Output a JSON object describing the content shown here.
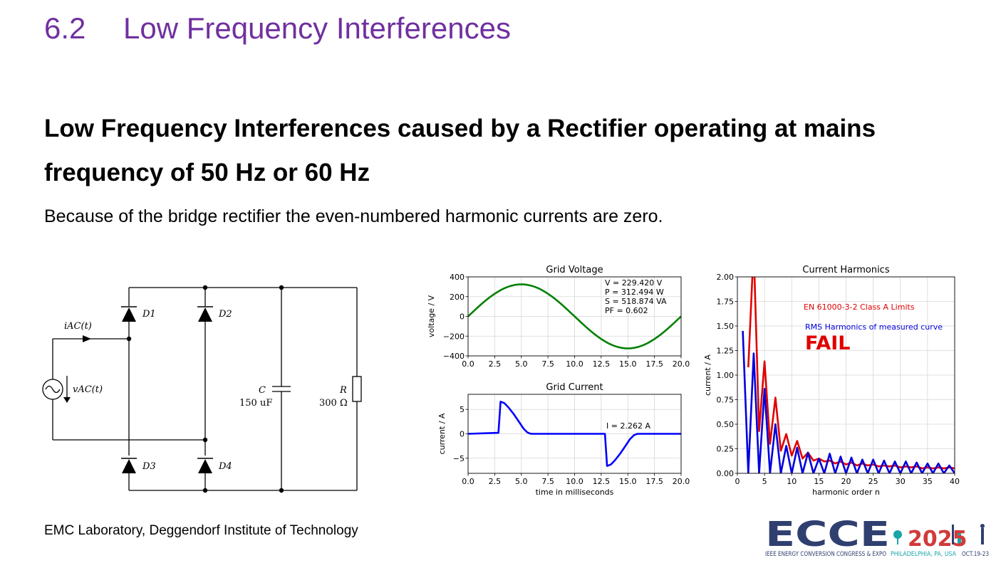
{
  "slide": {
    "section_number": "6.2",
    "section_title": "Low Frequency Interferences",
    "headline": "Low Frequency Interferences caused by a Rectifier operating at mains frequency of 50 Hz or 60 Hz",
    "subtext": "Because of the bridge rectifier the even-numbered harmonic currents are zero.",
    "footer": "EMC Laboratory, Deggendorf Institute of Technology"
  },
  "circuit": {
    "d1": "D1",
    "d2": "D2",
    "d3": "D3",
    "d4": "D4",
    "iac": "iAC(t)",
    "vac": "vAC(t)",
    "c_label": "C",
    "c_value": "150 uF",
    "r_label": "R",
    "r_value": "300 Ω"
  },
  "logo": {
    "name": "ECCE",
    "year": "2025",
    "tagline": "IEEE ENERGY CONVERSION CONGRESS & EXPO",
    "location": "PHILADELPHIA, PA, USA",
    "dates": "OCT.19-23",
    "colors": {
      "navy": "#2f3f6f",
      "red": "#d23a3a",
      "teal": "#1aa6a6",
      "gold": "#e3a13a"
    }
  },
  "chart_data": [
    {
      "type": "line",
      "title": "Grid Voltage",
      "xlabel": "",
      "ylabel": "voltage / V",
      "xlim": [
        0,
        20
      ],
      "ylim": [
        -400,
        400
      ],
      "xticks": [
        "0.0",
        "2.5",
        "5.0",
        "7.5",
        "10.0",
        "12.5",
        "15.0",
        "17.5",
        "20.0"
      ],
      "yticks": [
        "400",
        "200",
        "0",
        "−200",
        "−400"
      ],
      "ytick_values": [
        400,
        200,
        0,
        -200,
        -400
      ],
      "grid": true,
      "annotation": [
        "V = 229.420 V",
        "P = 312.494 W",
        "S = 518.874 VA",
        "PF = 0.602"
      ],
      "series": [
        {
          "color": "#008000",
          "amplitude": 324,
          "frequency_hz": 50
        }
      ]
    },
    {
      "type": "line",
      "title": "Grid Current",
      "xlabel": "time in milliseconds",
      "ylabel": "current / A",
      "xlim": [
        0,
        20
      ],
      "ylim": [
        -8.1,
        8.1
      ],
      "xticks": [
        "0.0",
        "2.5",
        "5.0",
        "7.5",
        "10.0",
        "12.5",
        "15.0",
        "17.5",
        "20.0"
      ],
      "yticks": [
        "5",
        "0",
        "−5"
      ],
      "ytick_values": [
        5,
        0,
        -5
      ],
      "grid": true,
      "annotation": [
        "I = 2.262 A"
      ],
      "series": [
        {
          "color": "#0000ff",
          "x": [
            0,
            2.85,
            3.05,
            3.4,
            3.8,
            4.3,
            4.8,
            5.2,
            5.55,
            5.85,
            6.0,
            12.85,
            13.05,
            13.4,
            13.8,
            14.3,
            14.8,
            15.2,
            15.55,
            15.85,
            16.0,
            20
          ],
          "y": [
            0,
            0.2,
            6.6,
            6.3,
            5.4,
            4.0,
            2.4,
            1.1,
            0.3,
            0.03,
            0,
            0,
            -6.6,
            -6.3,
            -5.4,
            -4.0,
            -2.4,
            -1.1,
            -0.3,
            -0.03,
            0,
            0
          ]
        }
      ]
    },
    {
      "type": "line",
      "title": "Current Harmonics",
      "xlabel": "harmonic order n",
      "ylabel": "current / A",
      "xlim": [
        0,
        40
      ],
      "ylim": [
        0,
        2.0
      ],
      "xticks": [
        "0",
        "5",
        "10",
        "15",
        "20",
        "25",
        "30",
        "35",
        "40"
      ],
      "xtick_values": [
        0,
        5,
        10,
        15,
        20,
        25,
        30,
        35,
        40
      ],
      "yticks": [
        "2.00",
        "1.75",
        "1.50",
        "1.25",
        "1.00",
        "0.75",
        "0.50",
        "0.25",
        "0.00"
      ],
      "ytick_values": [
        2.0,
        1.75,
        1.5,
        1.25,
        1.0,
        0.75,
        0.5,
        0.25,
        0.0
      ],
      "grid": true,
      "status": "FAIL",
      "series": [
        {
          "name": "EN 61000-3-2 Class A Limits",
          "color": "#e00000",
          "x": [
            2,
            3,
            4,
            5,
            6,
            7,
            8,
            9,
            10,
            11,
            12,
            13,
            14,
            15,
            16,
            17,
            18,
            19,
            20,
            21,
            22,
            23,
            24,
            25,
            26,
            27,
            28,
            29,
            30,
            31,
            32,
            33,
            34,
            35,
            36,
            37,
            38,
            39,
            40
          ],
          "y": [
            1.08,
            2.3,
            0.43,
            1.14,
            0.3,
            0.77,
            0.23,
            0.4,
            0.18,
            0.33,
            0.15,
            0.21,
            0.13,
            0.15,
            0.12,
            0.13,
            0.1,
            0.12,
            0.09,
            0.11,
            0.08,
            0.1,
            0.08,
            0.09,
            0.07,
            0.08,
            0.07,
            0.08,
            0.06,
            0.07,
            0.06,
            0.07,
            0.05,
            0.06,
            0.05,
            0.06,
            0.05,
            0.06,
            0.05
          ]
        },
        {
          "name": "RMS Harmonics of measured curve",
          "color": "#0000dd",
          "x": [
            1,
            2,
            3,
            4,
            5,
            6,
            7,
            8,
            9,
            10,
            11,
            12,
            13,
            14,
            15,
            16,
            17,
            18,
            19,
            20,
            21,
            22,
            23,
            24,
            25,
            26,
            27,
            28,
            29,
            30,
            31,
            32,
            33,
            34,
            35,
            36,
            37,
            38,
            39,
            40
          ],
          "y": [
            1.45,
            0,
            1.22,
            0,
            0.86,
            0,
            0.5,
            0,
            0.28,
            0,
            0.26,
            0,
            0.21,
            0,
            0.15,
            0,
            0.2,
            0,
            0.17,
            0,
            0.16,
            0,
            0.14,
            0,
            0.14,
            0,
            0.13,
            0,
            0.12,
            0,
            0.12,
            0,
            0.11,
            0,
            0.1,
            0,
            0.1,
            0,
            0.08,
            0
          ]
        }
      ]
    }
  ]
}
